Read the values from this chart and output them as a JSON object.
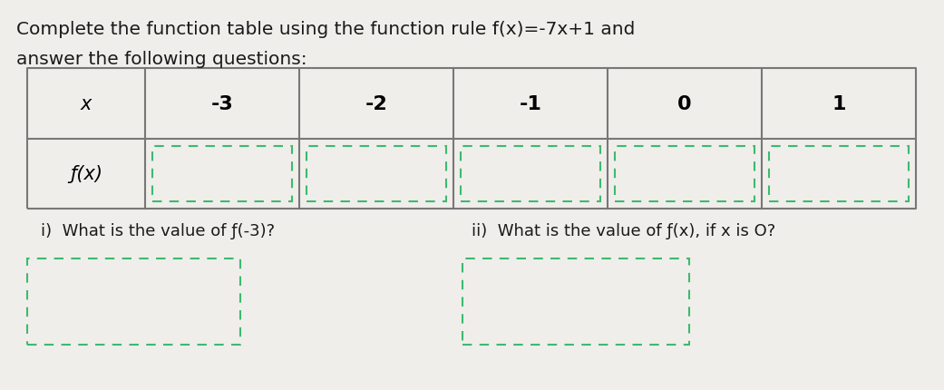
{
  "title_line1": "Complete the function table using the function rule f(x)=-7x+1 and",
  "title_line2": "answer the following questions:",
  "x_label": "x",
  "fx_label": "ƒ(x)",
  "x_values": [
    "-3",
    "-2",
    "-1",
    "0",
    "1"
  ],
  "table_border_color": "#777777",
  "dashed_box_color": "#3dba6f",
  "background_color": "#f0eeeb",
  "question_i": "i)  What is the value of ƒ(-3)?",
  "question_ii": "ii)  What is the value of ƒ(x), if x is O?",
  "title_fontsize": 14.5,
  "table_fontsize": 15,
  "question_fontsize": 13
}
